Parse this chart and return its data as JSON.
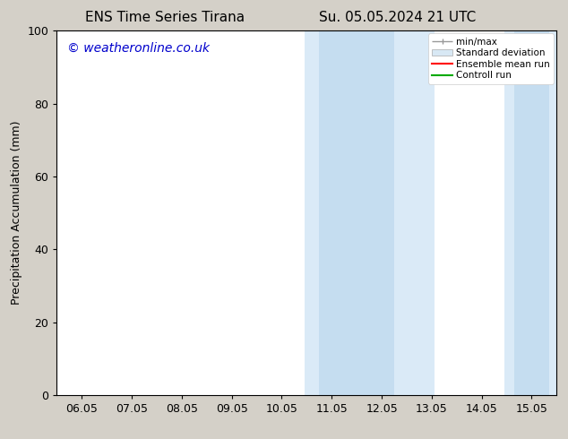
{
  "title_left": "ENS Time Series Tirana",
  "title_right": "Su. 05.05.2024 21 UTC",
  "ylabel": "Precipitation Accumulation (mm)",
  "watermark": "© weatheronline.co.uk",
  "ylim": [
    0,
    100
  ],
  "yticks": [
    0,
    20,
    40,
    60,
    80,
    100
  ],
  "xtick_labels": [
    "06.05",
    "07.05",
    "08.05",
    "09.05",
    "10.05",
    "11.05",
    "12.05",
    "13.05",
    "14.05",
    "15.05"
  ],
  "xtick_positions": [
    0,
    1,
    2,
    3,
    4,
    5,
    6,
    7,
    8,
    9
  ],
  "xlim": [
    -0.5,
    9.5
  ],
  "minmax_regions": [
    {
      "x_start": 4.45,
      "x_end": 7.05
    },
    {
      "x_start": 8.45,
      "x_end": 9.55
    }
  ],
  "std_regions": [
    {
      "x_start": 4.75,
      "x_end": 6.25
    },
    {
      "x_start": 8.65,
      "x_end": 9.35
    }
  ],
  "minmax_color": "#daeaf7",
  "std_color": "#c5ddf0",
  "bg_color": "#d4d0c8",
  "plot_bg_color": "#ffffff",
  "watermark_color": "#0000cc",
  "legend_labels": [
    "min/max",
    "Standard deviation",
    "Ensemble mean run",
    "Controll run"
  ],
  "legend_line_colors": [
    "#999999",
    "#cccccc",
    "#ff0000",
    "#00aa00"
  ],
  "title_fontsize": 11,
  "tick_fontsize": 9,
  "ylabel_fontsize": 9,
  "watermark_fontsize": 10
}
